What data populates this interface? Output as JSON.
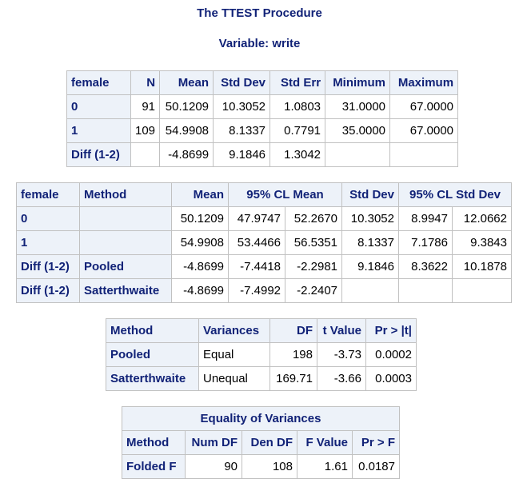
{
  "titles": {
    "procedure": "The TTEST Procedure",
    "variable": "Variable: write"
  },
  "stats_table": {
    "headers": [
      "female",
      "N",
      "Mean",
      "Std Dev",
      "Std Err",
      "Minimum",
      "Maximum"
    ],
    "rows": [
      [
        "0",
        "91",
        "50.1209",
        "10.3052",
        "1.0803",
        "31.0000",
        "67.0000"
      ],
      [
        "1",
        "109",
        "54.9908",
        "8.1337",
        "0.7791",
        "35.0000",
        "67.0000"
      ],
      [
        "Diff (1-2)",
        "",
        "-4.8699",
        "9.1846",
        "1.3042",
        "",
        ""
      ]
    ]
  },
  "cl_table": {
    "headers": [
      "female",
      "Method",
      "Mean",
      "95% CL Mean",
      "Std Dev",
      "95% CL Std Dev"
    ],
    "rows": [
      [
        "0",
        "",
        "50.1209",
        "47.9747",
        "52.2670",
        "10.3052",
        "8.9947",
        "12.0662"
      ],
      [
        "1",
        "",
        "54.9908",
        "53.4466",
        "56.5351",
        "8.1337",
        "7.1786",
        "9.3843"
      ],
      [
        "Diff (1-2)",
        "Pooled",
        "-4.8699",
        "-7.4418",
        "-2.2981",
        "9.1846",
        "8.3622",
        "10.1878"
      ],
      [
        "Diff (1-2)",
        "Satterthwaite",
        "-4.8699",
        "-7.4992",
        "-2.2407",
        "",
        "",
        ""
      ]
    ]
  },
  "ttest_table": {
    "headers": [
      "Method",
      "Variances",
      "DF",
      "t Value",
      "Pr > |t|"
    ],
    "rows": [
      [
        "Pooled",
        "Equal",
        "198",
        "-3.73",
        "0.0002"
      ],
      [
        "Satterthwaite",
        "Unequal",
        "169.71",
        "-3.66",
        "0.0003"
      ]
    ]
  },
  "eqvar_table": {
    "caption": "Equality of Variances",
    "headers": [
      "Method",
      "Num DF",
      "Den DF",
      "F Value",
      "Pr > F"
    ],
    "rows": [
      [
        "Folded F",
        "90",
        "108",
        "1.61",
        "0.0187"
      ]
    ]
  }
}
